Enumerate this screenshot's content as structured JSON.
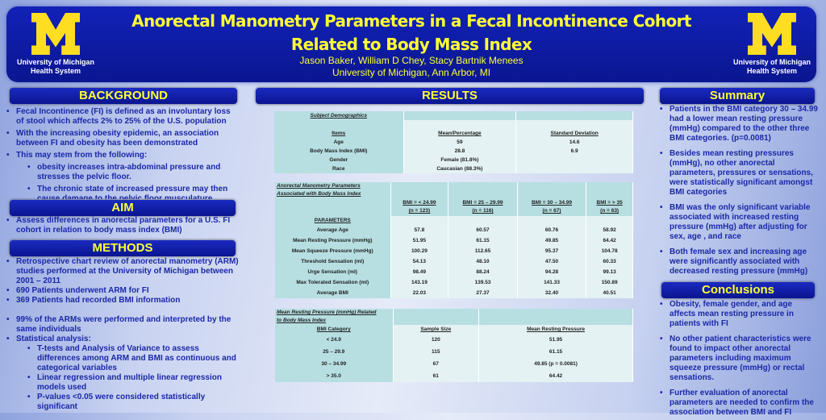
{
  "header": {
    "title": "Anorectal Manometry Parameters in a Fecal Incontinence Cohort Related to Body Mass Index",
    "authors": "Jason Baker, William D Chey, Stacy Bartnik Menees",
    "affiliation": "University of Michigan, Ann Arbor, MI",
    "logo_text_line1": "University of Michigan",
    "logo_text_line2": "Health System"
  },
  "colors": {
    "header_bg": "#0a1690",
    "title": "#ffff33",
    "body_text": "#1a28a8",
    "table_bg": "#e4f2f3",
    "table_header": "#b7dfe2"
  },
  "background": {
    "heading": "BACKGROUND",
    "items": [
      "Fecal Incontinence (FI) is defined as an involuntary loss of stool which affects 2% to 25% of the U.S. population",
      "With the increasing obesity epidemic, an association between  FI and obesity has been demonstrated",
      "This may stem from the following:"
    ],
    "subitems": [
      "obesity increases intra-abdominal pressure and stresses the pelvic floor.",
      "The chronic state of increased pressure may then cause damage to the pelvic floor musculature."
    ]
  },
  "aim": {
    "heading": "AIM",
    "items": [
      "Assess differences in anorectal parameters for a U.S. FI cohort in relation to body mass index (BMI)"
    ]
  },
  "methods": {
    "heading": "METHODS",
    "items": [
      "Retrospective chart review of anorectal manometry (ARM) studies performed at the University of Michigan between 2001 – 2011",
      "690 Patients underwent ARM for FI",
      "369 Patients had recorded BMI information",
      "99% of the ARMs were performed and interpreted by the same individuals",
      "Statistical  analysis:"
    ],
    "subitems": [
      "T-tests and Analysis of Variance to assess differences among ARM and BMI as continuous and categorical variables",
      "Linear regression and multiple linear regression models used",
      "P-values <0.05 were considered statistically significant"
    ]
  },
  "results": {
    "heading": "RESULTS",
    "demographics": {
      "caption": "Subject Demographics",
      "headers": [
        "Items",
        "Mean/Percentage",
        "Standard Deviation"
      ],
      "rows": [
        [
          "Age",
          "59",
          "14.6"
        ],
        [
          "Body Mass Index (BMI)",
          "28.8",
          "6.9"
        ],
        [
          "Gender",
          "Female (81.8%)",
          ""
        ],
        [
          "Race",
          "Caucasian (88.3%)",
          ""
        ]
      ]
    },
    "parameters": {
      "caption_line1": "Anorectal Manometry Parameters",
      "caption_line2": "Associated with Body Mass Index",
      "columns": [
        [
          "BMI  = < 24.99",
          "(n = 123)"
        ],
        [
          "BMI = 25 – 29.99",
          "(n = 116)"
        ],
        [
          "BMI = 30 – 34.99",
          "(n = 67)"
        ],
        [
          "BMI = > 35",
          "(n = 63)"
        ]
      ],
      "section_label": "PARAMETERS",
      "rows": [
        [
          "Average Age",
          "57.8",
          "60.57",
          "60.76",
          "58.92"
        ],
        [
          "Mean Resting Pressure (mmHg)",
          "51.95",
          "61.15",
          "49.85",
          "64.42"
        ],
        [
          "Mean Squeeze Pressure (mmHg)",
          "100.29",
          "112.65",
          "95.37",
          "104.78"
        ],
        [
          "Threshold Sensation (ml)",
          "54.13",
          "48.10",
          "47.50",
          "60.33"
        ],
        [
          "Urge Sensation (ml)",
          "98.49",
          "88.24",
          "94.28",
          "99.13"
        ],
        [
          "Max Tolerated Sensation (ml)",
          "143.19",
          "139.53",
          "141.33",
          "150.89"
        ],
        [
          "Average BMI",
          "22.03",
          "27.37",
          "32.40",
          "40.51"
        ]
      ]
    },
    "resting": {
      "caption_line1": "Mean Resting Pressure (mmHg) Related",
      "caption_line2": "to Body Mass Index",
      "headers": [
        "BMI Category",
        "Sample Size",
        "Mean Resting Pressure"
      ],
      "rows": [
        [
          "< 24.9",
          "120",
          "51.95"
        ],
        [
          "25 – 29.9",
          "115",
          "61.15"
        ],
        [
          "30 – 34.99",
          "67",
          "49.85 (p = 0.0081)"
        ],
        [
          "> 35.0",
          "61",
          "64.42"
        ]
      ]
    }
  },
  "summary": {
    "heading": "Summary",
    "items": [
      "Patients in the BMI category 30 – 34.99 had a lower mean resting pressure (mmHg) compared to the other three BMI categories. (p=0.0081)",
      "Besides mean resting pressures (mmHg), no other anorectal parameters, pressures or sensations, were statistically significant amongst BMI categories",
      "BMI was the only significant  variable associated with increased resting pressure (mmHg) after adjusting for sex, age , and race",
      "Both female sex and increasing age were significantly associated with decreased resting pressure (mmHg)"
    ]
  },
  "conclusions": {
    "heading": "Conclusions",
    "items": [
      "Obesity, female gender, and age affects mean resting pressure in patients with FI",
      "No other patient characteristics were found to impact  other anorectal parameters including maximum squeeze pressure (mmHg) or rectal sensations.",
      "Further evaluation of anorectal parameters are needed to confirm the association between BMI and FI"
    ]
  }
}
